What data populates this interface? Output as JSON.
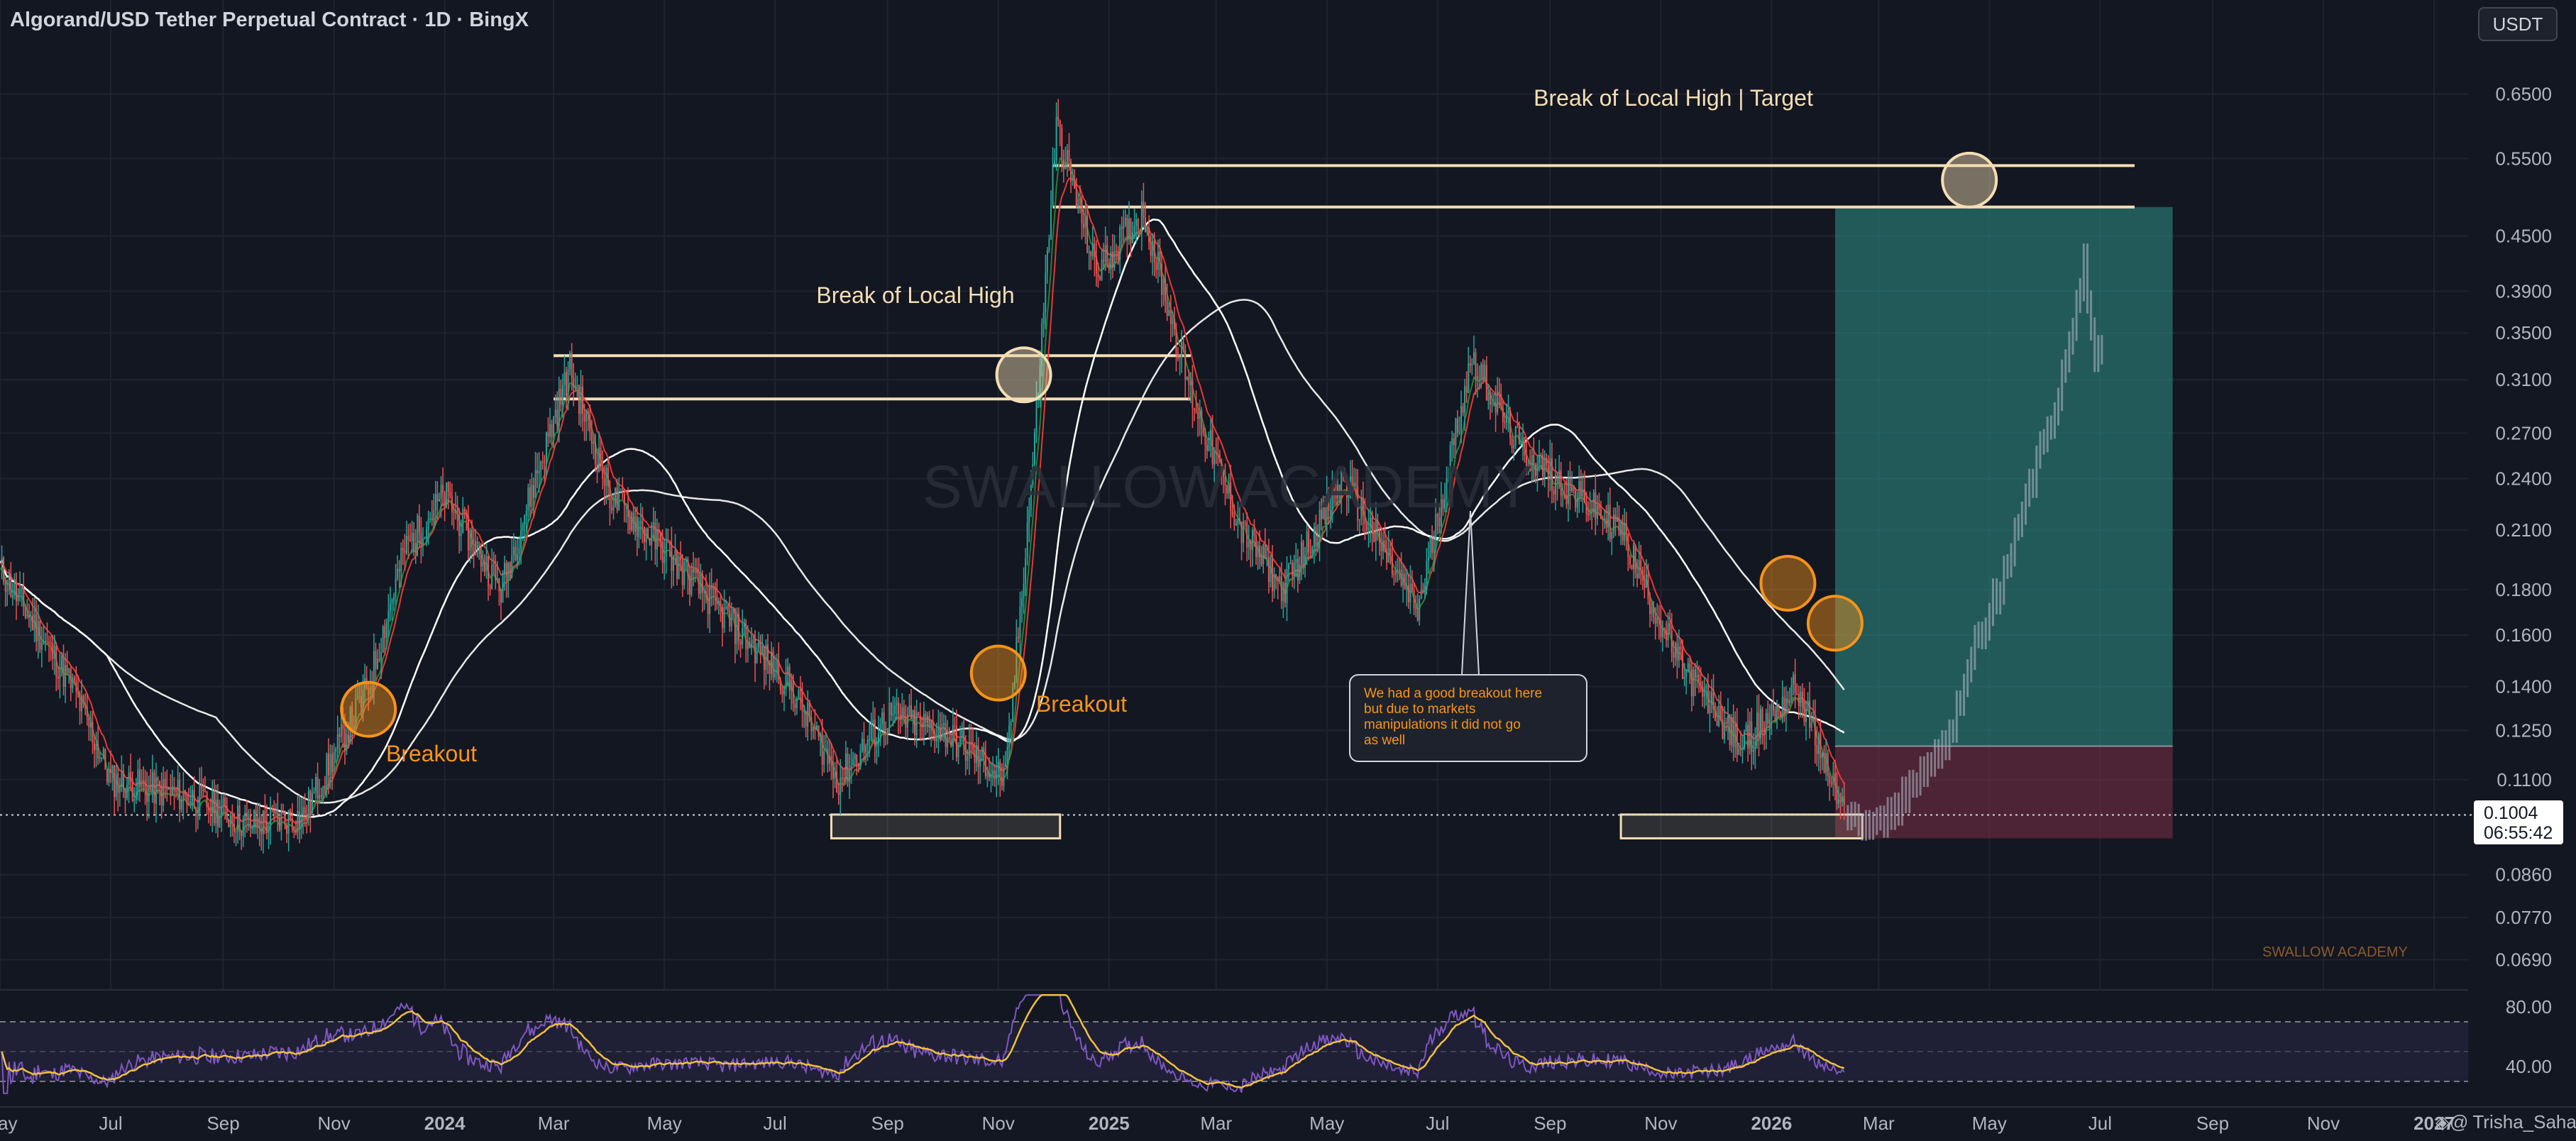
{
  "header": {
    "title": "Algorand/USD Tether Perpetual Contract · 1D · BingX",
    "currency_button": "USDT"
  },
  "colors": {
    "background": "#131722",
    "bull": "#26a69a",
    "bear": "#ef5350",
    "annotation_line": "#f5deb3",
    "orange": "#f7931a",
    "target_zone": "#2f9e8f",
    "stop_zone": "#7d2f45",
    "rsi_line": "#7e57c2",
    "rsi_ma": "#f0c040"
  },
  "watermark": "SWALLOW ACADEMY",
  "footer_brand": "SWALLOW ACADEMY",
  "author": "Trisha_Saha",
  "current_price": {
    "price": "0.1004",
    "countdown": "06:55:42"
  },
  "chart_data": {
    "type": "candlestick",
    "symbol": "ALGOUSDT",
    "timeframe": "1D",
    "y_scale": "log",
    "y_axis_ticks": [
      "0.6500",
      "0.5500",
      "0.4500",
      "0.3900",
      "0.3500",
      "0.3100",
      "0.2700",
      "0.2400",
      "0.2100",
      "0.1800",
      "0.1600",
      "0.1400",
      "0.1250",
      "0.1100",
      "0.0860",
      "0.0770",
      "0.0690"
    ],
    "x_axis_ticks": [
      "May",
      "Jul",
      "Sep",
      "Nov",
      "2024",
      "Mar",
      "May",
      "Jul",
      "Sep",
      "Nov",
      "2025",
      "Mar",
      "May",
      "Jul",
      "Sep",
      "Nov",
      "2026",
      "Mar",
      "May",
      "Jul",
      "Sep",
      "Nov",
      "2027"
    ],
    "price_path": [
      [
        "2023-05-01",
        0.19
      ],
      [
        "2023-06-10",
        0.14
      ],
      [
        "2023-07-01",
        0.11
      ],
      [
        "2023-08-15",
        0.105
      ],
      [
        "2023-09-15",
        0.098
      ],
      [
        "2023-10-15",
        0.1
      ],
      [
        "2023-11-20",
        0.14
      ],
      [
        "2023-12-10",
        0.2
      ],
      [
        "2024-01-01",
        0.23
      ],
      [
        "2024-02-01",
        0.18
      ],
      [
        "2024-03-10",
        0.32
      ],
      [
        "2024-04-01",
        0.23
      ],
      [
        "2024-05-01",
        0.2
      ],
      [
        "2024-06-01",
        0.17
      ],
      [
        "2024-07-10",
        0.14
      ],
      [
        "2024-08-05",
        0.11
      ],
      [
        "2024-09-01",
        0.13
      ],
      [
        "2024-10-01",
        0.125
      ],
      [
        "2024-11-05",
        0.11
      ],
      [
        "2024-11-20",
        0.25
      ],
      [
        "2024-12-03",
        0.6
      ],
      [
        "2024-12-25",
        0.41
      ],
      [
        "2025-01-20",
        0.48
      ],
      [
        "2025-02-15",
        0.3
      ],
      [
        "2025-03-15",
        0.21
      ],
      [
        "2025-04-07",
        0.18
      ],
      [
        "2025-05-10",
        0.24
      ],
      [
        "2025-06-20",
        0.17
      ],
      [
        "2025-07-20",
        0.33
      ],
      [
        "2025-08-15",
        0.26
      ],
      [
        "2025-09-15",
        0.23
      ],
      [
        "2025-10-10",
        0.21
      ],
      [
        "2025-11-10",
        0.15
      ],
      [
        "2025-12-15",
        0.12
      ],
      [
        "2026-01-15",
        0.14
      ],
      [
        "2026-02-10",
        0.1
      ]
    ],
    "projection_path": [
      [
        "2026-02-12",
        0.1
      ],
      [
        "2026-03-01",
        0.098
      ],
      [
        "2026-03-20",
        0.108
      ],
      [
        "2026-04-10",
        0.125
      ],
      [
        "2026-04-25",
        0.16
      ],
      [
        "2026-05-10",
        0.19
      ],
      [
        "2026-05-25",
        0.24
      ],
      [
        "2026-06-08",
        0.3
      ],
      [
        "2026-06-18",
        0.38
      ],
      [
        "2026-06-22",
        0.42
      ],
      [
        "2026-06-28",
        0.33
      ],
      [
        "2026-07-02",
        0.34
      ]
    ],
    "levels": [
      {
        "label": "Break of Local High",
        "prices": [
          0.33,
          0.295
        ],
        "from": "2024-03-01",
        "to": "2025-02-15"
      },
      {
        "label": "Break of Local High | Target",
        "prices": [
          0.54,
          0.485
        ],
        "from": "2024-12-01",
        "to": "2026-07-20"
      }
    ],
    "support_boxes": [
      {
        "from": "2024-08-01",
        "to": "2024-12-05",
        "low": 0.0945,
        "high": 0.1005
      },
      {
        "from": "2025-10-10",
        "to": "2026-02-20",
        "low": 0.0945,
        "high": 0.1005
      }
    ],
    "position": {
      "entry": 0.12,
      "stop": 0.0945,
      "target": 0.485,
      "from": "2026-02-05",
      "to": "2026-08-10"
    },
    "annotations": [
      {
        "text": "Break of Local High | Target"
      },
      {
        "text": "Break of Local High"
      },
      {
        "text": "Breakout"
      },
      {
        "text": "Breakout"
      },
      {
        "text": "We had a good breakout here but due to markets manipulations it did not go as well"
      }
    ],
    "rsi": {
      "levels": [
        "80.00",
        "40.00"
      ],
      "upper_band": 70,
      "lower_band": 30,
      "range": [
        20,
        90
      ]
    }
  }
}
